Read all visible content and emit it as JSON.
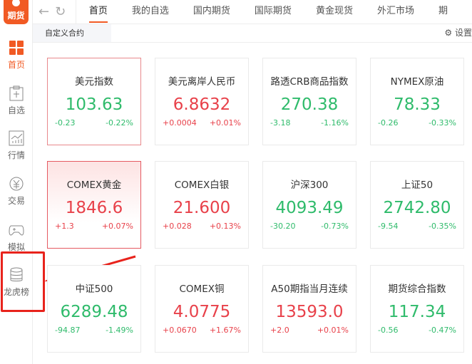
{
  "app": {
    "logo_text": "期货"
  },
  "sidebar": {
    "items": [
      {
        "label": "首页",
        "icon": "grid-icon",
        "active": true
      },
      {
        "label": "自选",
        "icon": "clipboard-plus-icon"
      },
      {
        "label": "行情",
        "icon": "chart-icon"
      },
      {
        "label": "交易",
        "icon": "yen-cycle-icon"
      },
      {
        "label": "模拟",
        "icon": "gamepad-icon"
      },
      {
        "label": "龙虎榜",
        "icon": "database-icon"
      }
    ]
  },
  "topbar": {
    "tabs": [
      "首页",
      "我的自选",
      "国内期货",
      "国际期货",
      "黄金现货",
      "外汇市场",
      "期"
    ],
    "active_tab": 0
  },
  "subbar": {
    "tab": "自定义合约",
    "settings": "设置"
  },
  "colors": {
    "accent": "#f15a24",
    "up": "#e8414a",
    "down": "#2fbb6b",
    "highlight": "#e8231c"
  },
  "cards": [
    {
      "name": "美元指数",
      "price": "103.63",
      "change": "-0.23",
      "pct": "-0.22%",
      "dir": "down"
    },
    {
      "name": "美元离岸人民币",
      "price": "6.8632",
      "change": "+0.0004",
      "pct": "+0.01%",
      "dir": "up"
    },
    {
      "name": "路透CRB商品指数",
      "price": "270.38",
      "change": "-3.18",
      "pct": "-1.16%",
      "dir": "down"
    },
    {
      "name": "NYMEX原油",
      "price": "78.33",
      "change": "-0.26",
      "pct": "-0.33%",
      "dir": "down"
    },
    {
      "name": "COMEX黄金",
      "price": "1846.6",
      "change": "+1.3",
      "pct": "+0.07%",
      "dir": "up"
    },
    {
      "name": "COMEX白银",
      "price": "21.600",
      "change": "+0.028",
      "pct": "+0.13%",
      "dir": "up"
    },
    {
      "name": "沪深300",
      "price": "4093.49",
      "change": "-30.20",
      "pct": "-0.73%",
      "dir": "down"
    },
    {
      "name": "上证50",
      "price": "2742.80",
      "change": "-9.54",
      "pct": "-0.35%",
      "dir": "down"
    },
    {
      "name": "中证500",
      "price": "6289.48",
      "change": "-94.87",
      "pct": "-1.49%",
      "dir": "down"
    },
    {
      "name": "COMEX铜",
      "price": "4.0775",
      "change": "+0.0670",
      "pct": "+1.67%",
      "dir": "up"
    },
    {
      "name": "A50期指当月连续",
      "price": "13593.0",
      "change": "+2.0",
      "pct": "+0.01%",
      "dir": "up"
    },
    {
      "name": "期货综合指数",
      "price": "117.34",
      "change": "-0.56",
      "pct": "-0.47%",
      "dir": "down"
    }
  ]
}
